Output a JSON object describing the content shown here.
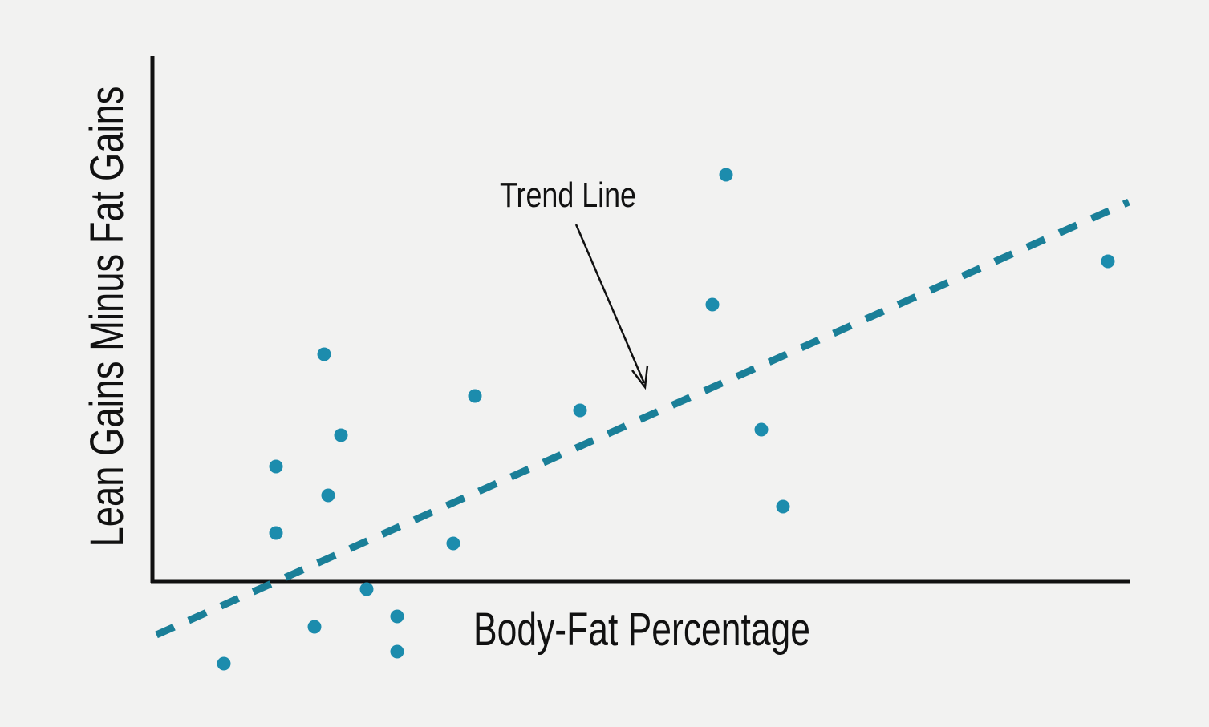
{
  "chart_data": {
    "type": "scatter",
    "x_label": "Body-Fat Percentage",
    "y_label": "Lean Gains Minus Fat Gains",
    "xlim": [
      0,
      121.7
    ],
    "ylim": [
      -12,
      65.5
    ],
    "series": [
      {
        "color": "#1c8cad",
        "x": [
          71.5,
          119.1,
          69.8,
          21.4,
          40.2,
          53.3,
          23.5,
          75.9,
          15.4,
          21.9,
          78.6,
          15.4,
          37.5,
          26.7,
          20.2,
          30.5,
          30.5,
          8.9
        ],
        "values": [
          50.7,
          39.9,
          34.5,
          28.3,
          23.1,
          21.3,
          18.2,
          18.9,
          14.3,
          10.7,
          9.3,
          6.0,
          4.7,
          -1.0,
          -5.7,
          -4.4,
          -8.8,
          -10.3
        ]
      }
    ],
    "trend": {
      "color": "#1a7f98",
      "x": [
        0.5,
        121.7
      ],
      "values": [
        -6.7,
        47.3
      ]
    },
    "annotation": "Trend Line"
  }
}
